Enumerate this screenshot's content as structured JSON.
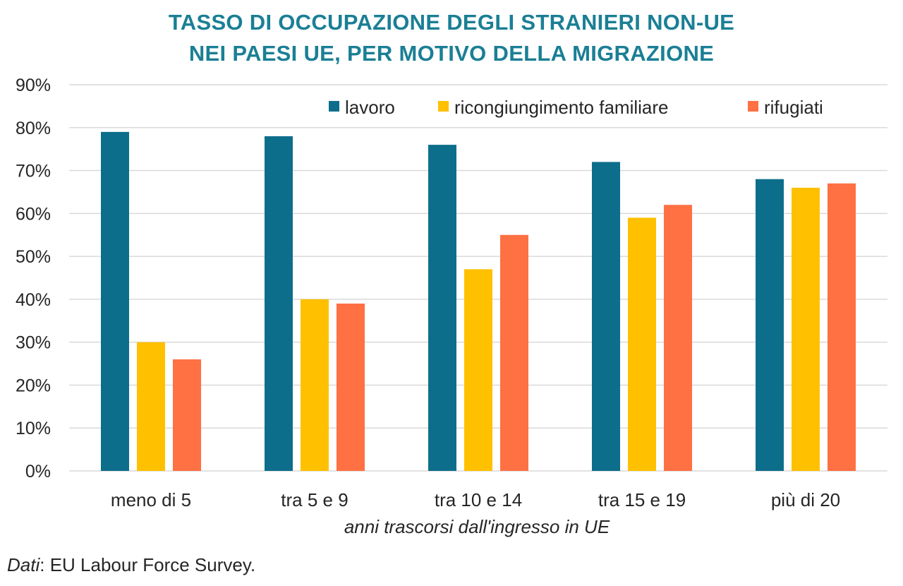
{
  "title_lines": [
    "TASSO DI OCCUPAZIONE DEGLI STRANIERI NON-UE",
    "NEI PAESI UE, PER MOTIVO DELLA MIGRAZIONE"
  ],
  "colors": {
    "title": "#1a7f95",
    "lavoro": "#0d6e8b",
    "ricongiungimento": "#ffc000",
    "rifugiati": "#ff7043",
    "grid": "#d9d9d9",
    "text": "#262626"
  },
  "source": {
    "prefix": "Dati",
    "text": ": EU Labour Force Survey."
  },
  "chart_data": {
    "type": "bar",
    "title": "TASSO DI OCCUPAZIONE DEGLI STRANIERI NON-UE NEI PAESI UE, PER MOTIVO DELLA MIGRAZIONE",
    "categories": [
      "meno di 5",
      "tra 5 e 9",
      "tra 10 e 14",
      "tra 15 e 19",
      "più di 20"
    ],
    "series": [
      {
        "name": "lavoro",
        "color": "#0d6e8b",
        "values": [
          79,
          78,
          76,
          72,
          68
        ]
      },
      {
        "name": "ricongiungimento familiare",
        "color": "#ffc000",
        "values": [
          30,
          40,
          47,
          59,
          66
        ]
      },
      {
        "name": "rifugiati",
        "color": "#ff7043",
        "values": [
          26,
          39,
          55,
          62,
          67
        ]
      }
    ],
    "xlabel": "anni trascorsi dall'ingresso in UE",
    "ylabel": "",
    "ylim": [
      0,
      90
    ],
    "yticks": [
      "0%",
      "10%",
      "20%",
      "30%",
      "40%",
      "50%",
      "60%",
      "70%",
      "80%",
      "90%"
    ],
    "grid": true,
    "legend_position": "top-right"
  }
}
